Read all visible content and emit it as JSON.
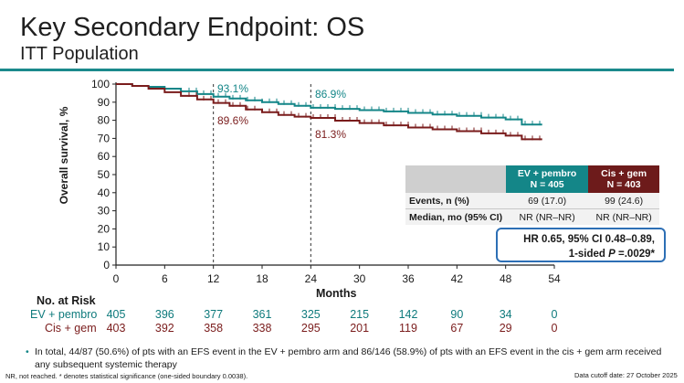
{
  "header": {
    "title": "Key Secondary Endpoint: OS",
    "subtitle": "ITT Population"
  },
  "colors": {
    "accent": "#1b8a8c",
    "ev": "#148688",
    "cis": "#7a1c1c",
    "hr_border": "#2d6fb5"
  },
  "chart_data": {
    "type": "line",
    "title": "Key Secondary Endpoint: OS",
    "xlabel": "Months",
    "ylabel": "Overall survival, %",
    "xlim": [
      0,
      54
    ],
    "ylim": [
      0,
      100
    ],
    "x_ticks": [
      0,
      6,
      12,
      18,
      24,
      30,
      36,
      42,
      48,
      54
    ],
    "y_ticks": [
      0,
      10,
      20,
      30,
      40,
      50,
      60,
      70,
      80,
      90,
      100
    ],
    "reference_lines_x": [
      12,
      24
    ],
    "series": [
      {
        "name": "EV + pembro",
        "color": "#148688",
        "x": [
          0,
          2,
          4,
          6,
          8,
          10,
          12,
          14,
          16,
          18,
          20,
          22,
          24,
          27,
          30,
          33,
          36,
          39,
          42,
          45,
          48,
          50,
          52.5
        ],
        "y": [
          100,
          99,
          98.5,
          97.5,
          96,
          94.5,
          93.1,
          92,
          91,
          90,
          89,
          88,
          86.9,
          86.3,
          85.6,
          84.9,
          84.1,
          83.2,
          82.5,
          81.5,
          80.5,
          77.7,
          77.7
        ]
      },
      {
        "name": "Cis + gem",
        "color": "#7a1c1c",
        "x": [
          0,
          2,
          4,
          6,
          8,
          10,
          12,
          14,
          16,
          18,
          20,
          22,
          24,
          27,
          30,
          33,
          36,
          39,
          42,
          45,
          48,
          50,
          52.5
        ],
        "y": [
          100,
          99,
          97.5,
          95.5,
          93.5,
          91.5,
          89.6,
          88,
          86,
          84.5,
          83,
          82,
          81.3,
          79.8,
          78.5,
          77.2,
          76,
          75,
          74,
          72.8,
          71.5,
          69.5,
          69.5
        ]
      }
    ],
    "annotations": [
      {
        "text": "93.1%",
        "series": "EV + pembro",
        "x": 12
      },
      {
        "text": "89.6%",
        "series": "Cis + gem",
        "x": 12
      },
      {
        "text": "86.9%",
        "series": "EV + pembro",
        "x": 24
      },
      {
        "text": "81.3%",
        "series": "Cis + gem",
        "x": 24
      }
    ]
  },
  "risk_table": {
    "title": "No. at Risk",
    "rows": [
      {
        "label": "EV + pembro",
        "values": [
          "405",
          "396",
          "377",
          "361",
          "325",
          "215",
          "142",
          "90",
          "34",
          "0"
        ]
      },
      {
        "label": "Cis + gem",
        "values": [
          "403",
          "392",
          "358",
          "338",
          "295",
          "201",
          "119",
          "67",
          "29",
          "0"
        ]
      }
    ]
  },
  "stats_table": {
    "col1": {
      "name": "EV + pembro",
      "n": "N = 405"
    },
    "col2": {
      "name": "Cis + gem",
      "n": "N = 403"
    },
    "rows": [
      {
        "label": "Events, n (%)",
        "v1": "69 (17.0)",
        "v2": "99 (24.6)"
      },
      {
        "label": "Median, mo (95% CI)",
        "v1": "NR (NR–NR)",
        "v2": "NR (NR–NR)"
      }
    ]
  },
  "hr_box": {
    "line1": "HR 0.65, 95% CI 0.48–0.89,",
    "line2_prefix": "1-sided ",
    "line2_p": "P",
    "line2_suffix": " =.0029*"
  },
  "bullet": "In total, 44/87 (50.6%) of pts with an EFS event in the EV + pembro arm and 86/146 (58.9%) of pts with an EFS event in the cis + gem arm received any subsequent systemic therapy",
  "footnote": "NR, not reached. * denotes statistical significance (one-sided boundary 0.0038).",
  "cutoff": "Data cutoff date: 27 October 2025"
}
